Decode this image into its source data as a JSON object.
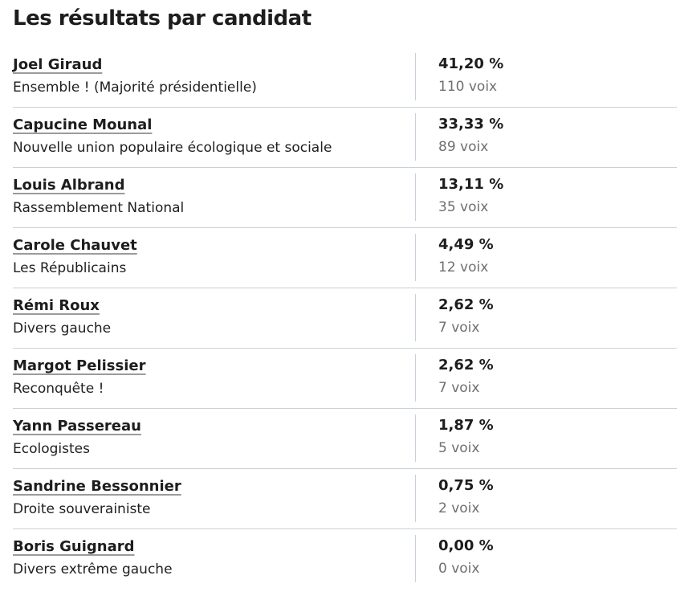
{
  "page": {
    "title": "Les résultats par candidat"
  },
  "colors": {
    "text_dark": "#1d1d1d",
    "text_gray": "#6f6f6f",
    "divider": "#c7d1d7",
    "name_underline": "#9b9b9b",
    "background": "#ffffff"
  },
  "candidates": [
    {
      "name": "Joel Giraud",
      "party": "Ensemble ! (Majorité présidentielle)",
      "percent": "41,20 %",
      "votes": "110 voix"
    },
    {
      "name": "Capucine Mounal",
      "party": "Nouvelle union populaire écologique et sociale",
      "percent": "33,33 %",
      "votes": "89 voix"
    },
    {
      "name": "Louis Albrand",
      "party": "Rassemblement National",
      "percent": "13,11 %",
      "votes": "35 voix"
    },
    {
      "name": "Carole Chauvet",
      "party": "Les Républicains",
      "percent": "4,49 %",
      "votes": "12 voix"
    },
    {
      "name": "Rémi Roux",
      "party": "Divers gauche",
      "percent": "2,62 %",
      "votes": "7 voix"
    },
    {
      "name": "Margot Pelissier",
      "party": "Reconquête !",
      "percent": "2,62 %",
      "votes": "7 voix"
    },
    {
      "name": "Yann Passereau",
      "party": "Ecologistes",
      "percent": "1,87 %",
      "votes": "5 voix"
    },
    {
      "name": "Sandrine Bessonnier",
      "party": "Droite souverainiste",
      "percent": "0,75 %",
      "votes": "2 voix"
    },
    {
      "name": "Boris Guignard",
      "party": "Divers extrême gauche",
      "percent": "0,00 %",
      "votes": "0 voix"
    }
  ]
}
